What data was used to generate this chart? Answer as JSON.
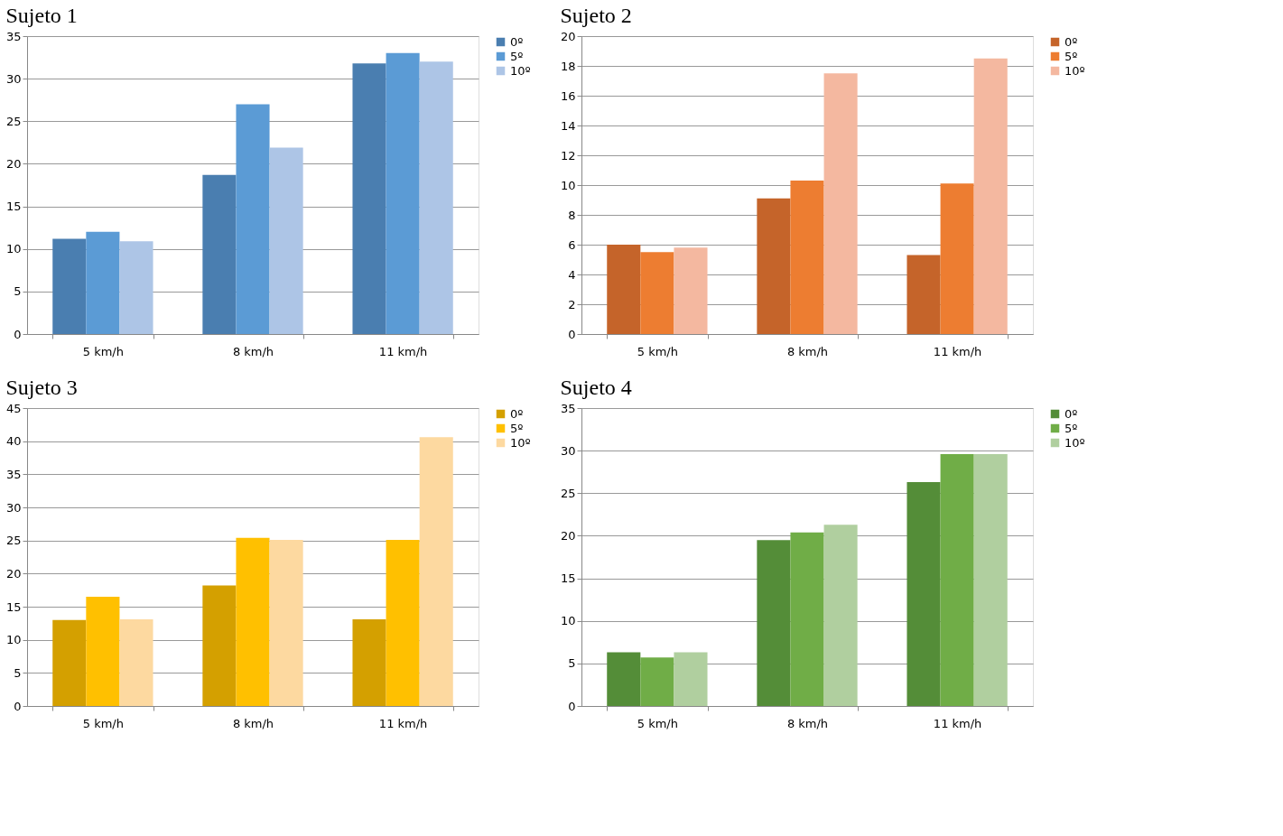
{
  "chart_data": [
    {
      "type": "bar",
      "title": "Sujeto 1",
      "categories": [
        "5 km/h",
        "8 km/h",
        "11 km/h"
      ],
      "ylim": [
        0,
        35
      ],
      "yticks": [
        0,
        5,
        10,
        15,
        20,
        25,
        30,
        35
      ],
      "grid": "y",
      "legend": "right",
      "series": [
        {
          "name": "0º",
          "color": "#4a7eb0",
          "values": [
            11.2,
            18.7,
            31.8
          ]
        },
        {
          "name": "5º",
          "color": "#5b9bd5",
          "values": [
            12.0,
            27.0,
            33.0
          ]
        },
        {
          "name": "10º",
          "color": "#adc5e6",
          "values": [
            10.9,
            21.9,
            32.0
          ]
        }
      ]
    },
    {
      "type": "bar",
      "title": "Sujeto 2",
      "categories": [
        "5 km/h",
        "8 km/h",
        "11 km/h"
      ],
      "ylim": [
        0,
        20
      ],
      "yticks": [
        0,
        2,
        4,
        6,
        8,
        10,
        12,
        14,
        16,
        18,
        20
      ],
      "grid": "y",
      "legend": "right",
      "series": [
        {
          "name": "0º",
          "color": "#c5642a",
          "values": [
            6.0,
            9.1,
            5.3
          ]
        },
        {
          "name": "5º",
          "color": "#ed7d31",
          "values": [
            5.5,
            10.3,
            10.1
          ]
        },
        {
          "name": "10º",
          "color": "#f4b8a0",
          "values": [
            5.8,
            17.5,
            18.5
          ]
        }
      ]
    },
    {
      "type": "bar",
      "title": "Sujeto 3",
      "categories": [
        "5 km/h",
        "8 km/h",
        "11 km/h"
      ],
      "ylim": [
        0,
        45
      ],
      "yticks": [
        0,
        5,
        10,
        15,
        20,
        25,
        30,
        35,
        40,
        45
      ],
      "grid": "y",
      "legend": "right",
      "series": [
        {
          "name": "0º",
          "color": "#d4a000",
          "values": [
            13.0,
            18.2,
            13.1
          ]
        },
        {
          "name": "5º",
          "color": "#ffc000",
          "values": [
            16.5,
            25.4,
            25.1
          ]
        },
        {
          "name": "10º",
          "color": "#fdd9a0",
          "values": [
            13.1,
            25.1,
            40.6
          ]
        }
      ]
    },
    {
      "type": "bar",
      "title": "Sujeto 4",
      "categories": [
        "5 km/h",
        "8 km/h",
        "11 km/h"
      ],
      "ylim": [
        0,
        35
      ],
      "yticks": [
        0,
        5,
        10,
        15,
        20,
        25,
        30,
        35
      ],
      "grid": "y",
      "legend": "right",
      "series": [
        {
          "name": "0º",
          "color": "#548d38",
          "values": [
            6.3,
            19.5,
            26.3
          ]
        },
        {
          "name": "5º",
          "color": "#70ad47",
          "values": [
            5.7,
            20.4,
            29.6
          ]
        },
        {
          "name": "10º",
          "color": "#b0cf9f",
          "values": [
            6.3,
            21.3,
            29.6
          ]
        }
      ]
    }
  ]
}
